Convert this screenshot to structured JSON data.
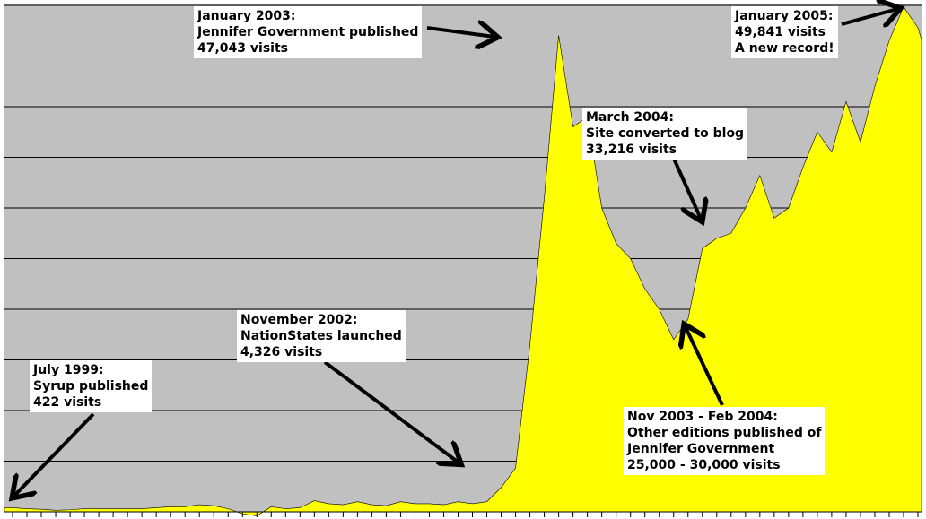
{
  "chart_data": {
    "type": "area",
    "ylim": [
      0,
      50000
    ],
    "grid": true,
    "colors": {
      "background": "#c0c0c0",
      "fill": "#ffff00",
      "gridline": "#000000"
    },
    "values": [
      400,
      300,
      250,
      150,
      200,
      300,
      300,
      300,
      300,
      300,
      400,
      500,
      500,
      700,
      600,
      300,
      -200,
      -400,
      500,
      300,
      400,
      1100,
      800,
      700,
      1000,
      700,
      600,
      1000,
      800,
      800,
      700,
      1000,
      800,
      1000,
      2400,
      4326,
      16500,
      31000,
      47043,
      38000,
      39000,
      30000,
      26500,
      25000,
      22000,
      20000,
      17000,
      19000,
      26000,
      27000,
      27500,
      30000,
      33216,
      29000,
      30000,
      34000,
      37500,
      35500,
      40500,
      36500,
      42000,
      46500,
      49841,
      47800
    ]
  },
  "annotations": [
    {
      "lines": [
        "July 1999:",
        "Syrup published",
        "422 visits"
      ]
    },
    {
      "lines": [
        "November 2002:",
        "NationStates launched",
        "4,326 visits"
      ]
    },
    {
      "lines": [
        "January 2003:",
        "Jennifer Government published",
        "47,043 visits"
      ]
    },
    {
      "lines": [
        "March 2004:",
        "Site converted to blog",
        "33,216 visits"
      ]
    },
    {
      "lines": [
        "Nov 2003 - Feb 2004:",
        "Other editions published of",
        "Jennifer Government",
        "25,000 - 30,000 visits"
      ]
    },
    {
      "lines": [
        "January 2005:",
        "49,841 visits",
        "A new record!"
      ]
    }
  ]
}
